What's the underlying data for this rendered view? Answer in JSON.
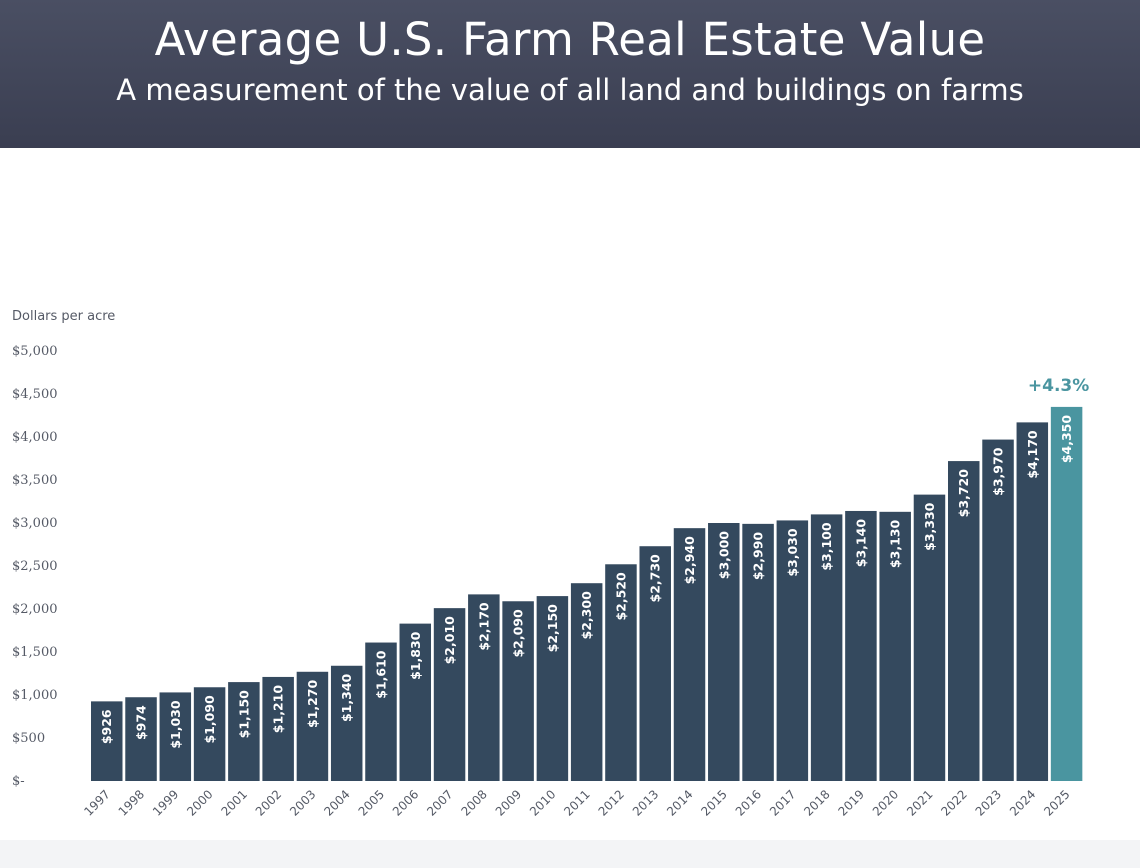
{
  "colors": {
    "banner": "#42475a",
    "bar": "#34495e",
    "highlight": "#4a95a0",
    "text": "#555a66"
  },
  "chart_data": {
    "type": "bar",
    "title": "Average U.S. Farm Real Estate Value",
    "subtitle": "A measurement of the value of all land and buildings on farms",
    "ylabel": "Dollars per acre",
    "ylim": [
      0,
      5000
    ],
    "yticks": [
      0,
      500,
      1000,
      1500,
      2000,
      2500,
      3000,
      3500,
      4000,
      4500,
      5000
    ],
    "ytick_labels": [
      "$-",
      "$500",
      "$1,000",
      "$1,500",
      "$2,000",
      "$2,500",
      "$3,000",
      "$3,500",
      "$4,000",
      "$4,500",
      "$5,000"
    ],
    "grid": false,
    "categories": [
      "1997",
      "1998",
      "1999",
      "2000",
      "2001",
      "2002",
      "2003",
      "2004",
      "2005",
      "2006",
      "2007",
      "2008",
      "2009",
      "2010",
      "2011",
      "2012",
      "2013",
      "2014",
      "2015",
      "2016",
      "2017",
      "2018",
      "2019",
      "2020",
      "2021",
      "2022",
      "2023",
      "2024",
      "2025"
    ],
    "values": [
      926,
      974,
      1030,
      1090,
      1150,
      1210,
      1270,
      1340,
      1610,
      1830,
      2010,
      2170,
      2090,
      2150,
      2300,
      2520,
      2730,
      2940,
      3000,
      2990,
      3030,
      3100,
      3140,
      3130,
      3330,
      3720,
      3970,
      4170,
      4350
    ],
    "value_labels": [
      "$926",
      "$974",
      "$1,030",
      "$1,090",
      "$1,150",
      "$1,210",
      "$1,270",
      "$1,340",
      "$1,610",
      "$1,830",
      "$2,010",
      "$2,170",
      "$2,090",
      "$2,150",
      "$2,300",
      "$2,520",
      "$2,730",
      "$2,940",
      "$3,000",
      "$2,990",
      "$3,030",
      "$3,100",
      "$3,140",
      "$3,130",
      "$3,330",
      "$3,720",
      "$3,970",
      "$4,170",
      "$4,350"
    ],
    "highlight_index": 28,
    "annotation": "+4.3%"
  }
}
